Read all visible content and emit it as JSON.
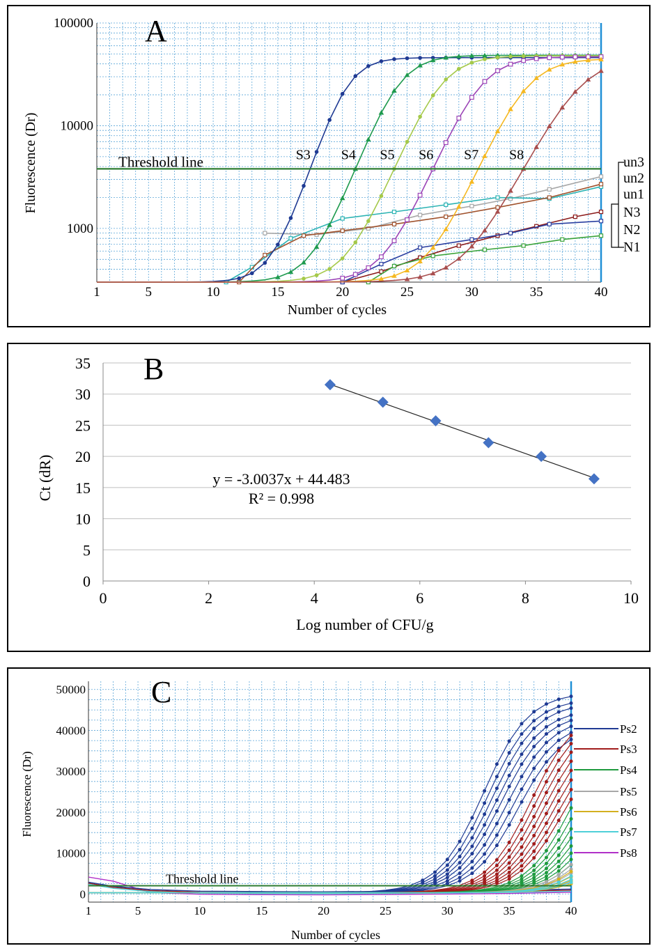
{
  "chart_data": [
    {
      "panel": "A",
      "type": "line",
      "panel_label": "A",
      "xlabel": "Number of cycles",
      "ylabel": "Fluorescence (Dr)",
      "x_ticks": [
        1,
        5,
        10,
        15,
        20,
        25,
        30,
        35,
        40
      ],
      "y_ticks": [
        "100000",
        "10000",
        "1000"
      ],
      "y_scale": "log",
      "ylim": [
        300,
        100000
      ],
      "xlim": [
        1,
        40
      ],
      "threshold_label": "Threshold line",
      "threshold": 3800,
      "colors": {
        "axis": "#1f8fd6",
        "grid": "#5aa5d8",
        "threshold": "#2e7d32"
      },
      "series": [
        {
          "name": "S3",
          "color": "#1f3a93",
          "marker": "dot",
          "ct": 17.5,
          "max": 46000,
          "k": 0.9
        },
        {
          "name": "S4",
          "color": "#1e9a4e",
          "marker": "tri",
          "ct": 21.0,
          "max": 48500,
          "k": 0.78
        },
        {
          "name": "S5",
          "color": "#a5c94a",
          "marker": "dot",
          "ct": 24.0,
          "max": 48000,
          "k": 0.72
        },
        {
          "name": "S6",
          "color": "#9b44b6",
          "marker": "sq",
          "ct": 27.0,
          "max": 47000,
          "k": 0.7
        },
        {
          "name": "S7",
          "color": "#f5b821",
          "marker": "tri",
          "ct": 30.5,
          "max": 45000,
          "k": 0.68
        },
        {
          "name": "S8",
          "color": "#a84e4e",
          "marker": "tri",
          "ct": 34.0,
          "max": 47000,
          "k": 0.58
        }
      ],
      "low_series": [
        {
          "name": "un3",
          "color": "#a8a8a8",
          "points": [
            [
              14,
              900
            ],
            [
              18,
              870
            ],
            [
              22,
              1000
            ],
            [
              26,
              1350
            ],
            [
              30,
              1650
            ],
            [
              33,
              1950
            ],
            [
              36,
              2400
            ],
            [
              40,
              3200
            ]
          ]
        },
        {
          "name": "un2",
          "color": "#2bb3b3",
          "points": [
            [
              11,
              300
            ],
            [
              13,
              420
            ],
            [
              16,
              800
            ],
            [
              20,
              1250
            ],
            [
              24,
              1450
            ],
            [
              28,
              1700
            ],
            [
              32,
              2000
            ],
            [
              36,
              1950
            ],
            [
              40,
              2550
            ]
          ]
        },
        {
          "name": "un1",
          "color": "#a0522d",
          "points": [
            [
              12,
              300
            ],
            [
              14,
              550
            ],
            [
              17,
              850
            ],
            [
              20,
              950
            ],
            [
              24,
              1100
            ],
            [
              28,
              1300
            ],
            [
              32,
              1600
            ],
            [
              36,
              2000
            ],
            [
              40,
              2700
            ]
          ]
        },
        {
          "name": "N3",
          "color": "#8b1a1a",
          "points": [
            [
              20,
              300
            ],
            [
              23,
              380
            ],
            [
              26,
              520
            ],
            [
              29,
              680
            ],
            [
              32,
              850
            ],
            [
              35,
              1050
            ],
            [
              38,
              1300
            ],
            [
              40,
              1450
            ]
          ]
        },
        {
          "name": "N2",
          "color": "#2a3fa0",
          "points": [
            [
              20,
              300
            ],
            [
              23,
              450
            ],
            [
              26,
              650
            ],
            [
              30,
              780
            ],
            [
              33,
              900
            ],
            [
              36,
              1100
            ],
            [
              40,
              1180
            ]
          ]
        },
        {
          "name": "N1",
          "color": "#3aa33a",
          "points": [
            [
              22,
              300
            ],
            [
              24,
              430
            ],
            [
              27,
              540
            ],
            [
              31,
              620
            ],
            [
              34,
              680
            ],
            [
              37,
              780
            ],
            [
              40,
              850
            ]
          ]
        }
      ],
      "legend_group": [
        "un3",
        "un2",
        "un1",
        "N3",
        "N2",
        "N1"
      ]
    },
    {
      "panel": "B",
      "type": "scatter",
      "panel_label": "B",
      "xlabel": "Log number of CFU/g",
      "ylabel": "Ct (dR)",
      "x_ticks": [
        0,
        2,
        4,
        6,
        8,
        10
      ],
      "y_ticks": [
        0,
        5,
        10,
        15,
        20,
        25,
        30,
        35
      ],
      "xlim": [
        0,
        10
      ],
      "ylim": [
        0,
        35
      ],
      "points": [
        [
          4.3,
          31.5
        ],
        [
          5.3,
          28.7
        ],
        [
          6.3,
          25.7
        ],
        [
          7.3,
          22.2
        ],
        [
          8.3,
          20.0
        ],
        [
          9.3,
          16.4
        ]
      ],
      "trendline": {
        "slope": -3.0037,
        "intercept": 44.483,
        "x_range": [
          4.3,
          9.3
        ]
      },
      "equation": "y = -3.0037x  + 44.483",
      "r_squared": "R² = 0.998",
      "colors": {
        "marker": "#4472c4",
        "grid": "#bfbfbf",
        "trend": "#222222"
      }
    },
    {
      "panel": "C",
      "type": "line",
      "panel_label": "C",
      "xlabel": "Number of cycles",
      "ylabel": "Fluorescence (Dr)",
      "x_ticks": [
        1,
        5,
        10,
        15,
        20,
        25,
        30,
        35,
        40
      ],
      "y_ticks": [
        0,
        10000,
        20000,
        30000,
        40000,
        50000
      ],
      "xlim": [
        1,
        40
      ],
      "ylim": [
        -2000,
        52000
      ],
      "threshold_label": "Threshold line",
      "threshold": 2000,
      "colors": {
        "axis": "#1f8fd6",
        "grid": "#5aa5d8",
        "threshold": "#2e7d32"
      },
      "series": [
        {
          "name": "Ps2",
          "color": "#1f3a93",
          "ct": [
            27.2,
            27.6,
            28.0,
            28.4,
            28.8,
            29.3,
            29.8,
            30.3
          ],
          "max": [
            49000,
            47500,
            46500,
            45000,
            44000,
            43000,
            42000,
            41000
          ]
        },
        {
          "name": "Ps3",
          "color": "#a01c1c",
          "ct": [
            31.2,
            31.6,
            32.0,
            32.4,
            32.8,
            33.2,
            33.6,
            34.0
          ],
          "max": [
            45000,
            44000,
            43000,
            42000,
            41000,
            40000,
            39000,
            38000
          ]
        },
        {
          "name": "Ps4",
          "color": "#1e9a3e",
          "ct": [
            34.6,
            35.0,
            35.4,
            35.8,
            36.2,
            36.6,
            37.0,
            37.4
          ],
          "max": [
            42000,
            40000,
            38000,
            36000,
            34000,
            32000,
            30000,
            28000
          ]
        },
        {
          "name": "Ps5",
          "color": "#a8a8a8",
          "ct": [
            37.4,
            37.8,
            38.2,
            38.6,
            39.0,
            39.4
          ],
          "max": [
            30000,
            28000,
            26000,
            24000,
            22000,
            20000
          ]
        },
        {
          "name": "Ps6",
          "color": "#d4b01f",
          "ct": [
            38.0,
            38.6,
            39.2,
            39.8
          ],
          "max": [
            25000,
            22000,
            20000,
            18000
          ]
        },
        {
          "name": "Ps7",
          "color": "#4fd0d8",
          "ct": [
            38.5,
            39.0,
            39.5
          ],
          "max": [
            22000,
            20000,
            18000
          ]
        },
        {
          "name": "Ps8",
          "color": "#b030c8",
          "ct": [],
          "max": []
        }
      ],
      "legend": [
        "Ps2",
        "Ps3",
        "Ps4",
        "Ps5",
        "Ps6",
        "Ps7",
        "Ps8"
      ]
    }
  ]
}
